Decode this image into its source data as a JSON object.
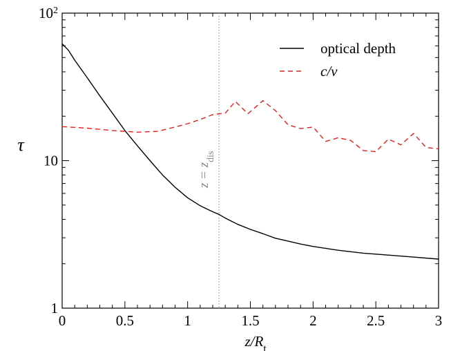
{
  "chart_data": {
    "type": "line",
    "xlabel": "z/R",
    "xlabel_sub": "t",
    "ylabel": "τ",
    "xlim": [
      0,
      3
    ],
    "ylim": [
      1,
      100
    ],
    "y_scale": "log",
    "grid": false,
    "legend_position": "top-right",
    "x_ticks": [
      0,
      0.5,
      1,
      1.5,
      2,
      2.5,
      3
    ],
    "x_tick_labels": [
      "0",
      "0.5",
      "1",
      "1.5",
      "2",
      "2.5",
      "3"
    ],
    "y_ticks": [
      1,
      10,
      100
    ],
    "y_tick_labels": [
      {
        "base": "1",
        "exp": ""
      },
      {
        "base": "10",
        "exp": ""
      },
      {
        "base": "10",
        "exp": "2"
      }
    ],
    "annotation": {
      "x": 1.25,
      "main": "z = z",
      "sub": "dis",
      "line_color": "#999999"
    },
    "series": [
      {
        "name": "optical depth",
        "color": "#000000",
        "dash": "solid",
        "x": [
          0,
          0.05,
          0.1,
          0.2,
          0.3,
          0.4,
          0.5,
          0.6,
          0.7,
          0.8,
          0.9,
          1.0,
          1.1,
          1.2,
          1.25,
          1.3,
          1.4,
          1.5,
          1.6,
          1.7,
          1.8,
          1.9,
          2.0,
          2.2,
          2.4,
          2.6,
          2.8,
          3.0
        ],
        "y": [
          62,
          56,
          48,
          36.5,
          27.5,
          21,
          16,
          12.6,
          10.0,
          8.0,
          6.6,
          5.6,
          4.95,
          4.5,
          4.32,
          4.08,
          3.7,
          3.42,
          3.2,
          2.98,
          2.85,
          2.72,
          2.62,
          2.47,
          2.36,
          2.29,
          2.22,
          2.15
        ]
      },
      {
        "name": "c/v",
        "color": "#e02020",
        "dash": "dashed",
        "x": [
          0,
          0.2,
          0.4,
          0.6,
          0.76,
          0.9,
          1.0,
          1.1,
          1.2,
          1.3,
          1.38,
          1.48,
          1.6,
          1.7,
          1.8,
          1.9,
          2.0,
          2.1,
          2.2,
          2.3,
          2.4,
          2.5,
          2.6,
          2.7,
          2.8,
          2.9,
          3.0
        ],
        "y": [
          17,
          16.6,
          16.0,
          15.6,
          15.8,
          16.9,
          17.8,
          19.0,
          20.5,
          21.0,
          25.2,
          20.8,
          25.5,
          21.8,
          17.5,
          16.5,
          16.9,
          13.5,
          14.3,
          13.7,
          11.7,
          11.5,
          14.0,
          12.8,
          15.3,
          12.3,
          12.0
        ]
      }
    ]
  }
}
